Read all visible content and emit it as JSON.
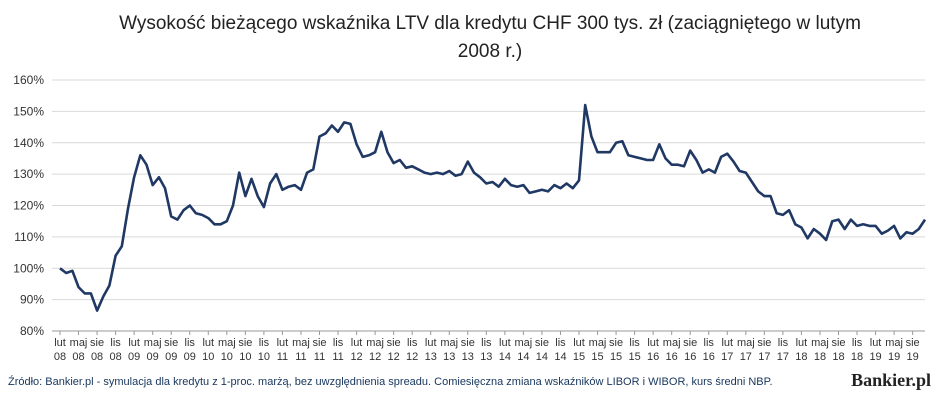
{
  "chart_data": {
    "type": "line",
    "title": "Wysokość bieżącego wskaźnika LTV dla kredytu CHF 300 tys. zł (zaciągniętego w lutym 2008 r.)",
    "title_line1": "Wysokość bieżącego wskaźnika LTV dla kredytu CHF 300 tys. zł (zaciągniętego w lutym",
    "title_line2": "2008 r.)",
    "xlabel": "",
    "ylabel": "",
    "ylim": [
      80,
      160
    ],
    "yticks": [
      80,
      90,
      100,
      110,
      120,
      130,
      140,
      150,
      160
    ],
    "y_tick_labels": [
      "80%",
      "90%",
      "100%",
      "110%",
      "120%",
      "130%",
      "140%",
      "150%",
      "160%"
    ],
    "grid": true,
    "x_tick_labels": [
      {
        "m": "lut",
        "y": "08"
      },
      {
        "m": "maj",
        "y": "08"
      },
      {
        "m": "sie",
        "y": "08"
      },
      {
        "m": "lis",
        "y": "08"
      },
      {
        "m": "lut",
        "y": "09"
      },
      {
        "m": "maj",
        "y": "09"
      },
      {
        "m": "sie",
        "y": "09"
      },
      {
        "m": "lis",
        "y": "09"
      },
      {
        "m": "lut",
        "y": "10"
      },
      {
        "m": "maj",
        "y": "10"
      },
      {
        "m": "sie",
        "y": "10"
      },
      {
        "m": "lis",
        "y": "10"
      },
      {
        "m": "lut",
        "y": "11"
      },
      {
        "m": "maj",
        "y": "11"
      },
      {
        "m": "sie",
        "y": "11"
      },
      {
        "m": "lis",
        "y": "11"
      },
      {
        "m": "lut",
        "y": "12"
      },
      {
        "m": "maj",
        "y": "12"
      },
      {
        "m": "sie",
        "y": "12"
      },
      {
        "m": "lis",
        "y": "12"
      },
      {
        "m": "lut",
        "y": "13"
      },
      {
        "m": "maj",
        "y": "13"
      },
      {
        "m": "sie",
        "y": "13"
      },
      {
        "m": "lis",
        "y": "13"
      },
      {
        "m": "lut",
        "y": "14"
      },
      {
        "m": "maj",
        "y": "14"
      },
      {
        "m": "sie",
        "y": "14"
      },
      {
        "m": "lis",
        "y": "14"
      },
      {
        "m": "lut",
        "y": "15"
      },
      {
        "m": "maj",
        "y": "15"
      },
      {
        "m": "sie",
        "y": "15"
      },
      {
        "m": "lis",
        "y": "15"
      },
      {
        "m": "lut",
        "y": "16"
      },
      {
        "m": "maj",
        "y": "16"
      },
      {
        "m": "sie",
        "y": "16"
      },
      {
        "m": "lis",
        "y": "16"
      },
      {
        "m": "lut",
        "y": "17"
      },
      {
        "m": "maj",
        "y": "17"
      },
      {
        "m": "sie",
        "y": "17"
      },
      {
        "m": "lis",
        "y": "17"
      },
      {
        "m": "lut",
        "y": "18"
      },
      {
        "m": "maj",
        "y": "18"
      },
      {
        "m": "sie",
        "y": "18"
      },
      {
        "m": "lis",
        "y": "18"
      },
      {
        "m": "lut",
        "y": "19"
      },
      {
        "m": "maj",
        "y": "19"
      },
      {
        "m": "sie",
        "y": "19"
      }
    ],
    "x_start": "2008-02",
    "x_end": "2019-09",
    "series": [
      {
        "values": [
          100,
          98.5,
          99.2,
          94,
          92,
          92,
          86.5,
          91,
          94.5,
          104,
          107,
          119,
          129,
          136,
          133,
          126.5,
          129,
          125.5,
          116.5,
          115.5,
          118.5,
          120,
          117.5,
          117,
          116,
          114,
          114,
          115,
          120,
          130.5,
          123,
          128.5,
          123,
          119.5,
          127,
          130,
          125,
          126,
          126.5,
          125,
          130.5,
          131.5,
          142,
          143,
          145.5,
          143.5,
          146.5,
          146,
          139.5,
          135.5,
          136,
          137,
          143.5,
          137,
          133.5,
          134.5,
          132,
          132.5,
          131.5,
          130.5,
          130,
          130.5,
          130,
          131,
          129.5,
          130,
          134,
          130.5,
          129,
          127,
          127.5,
          126,
          128.5,
          126.5,
          126,
          126.5,
          124,
          124.5,
          125,
          124.5,
          126.5,
          125.5,
          127,
          125.5,
          128,
          152,
          142,
          137,
          137,
          137,
          140,
          140.5,
          136,
          135.5,
          135,
          134.5,
          134.5,
          139.5,
          135,
          133,
          133,
          132.5,
          137.5,
          134.5,
          130.5,
          131.5,
          130.5,
          135.5,
          136.5,
          134,
          131,
          130.5,
          127.5,
          124.5,
          123,
          123,
          117.5,
          117,
          118.5,
          114,
          113,
          109.5,
          112.5,
          111,
          109,
          115,
          115.5,
          112.5,
          115.5,
          113.5,
          114,
          113.5,
          113.5,
          111,
          112,
          113.5,
          109.5,
          111.5,
          111,
          112.5,
          115.5
        ]
      }
    ],
    "line_color": "#1f3864"
  },
  "footer": {
    "source": "Źródło: Bankier.pl - symulacja dla kredytu z 1-proc. marżą, bez uwzględnienia spreadu. Comiesięczna zmiana wskaźników LIBOR i WIBOR, kurs średni NBP.",
    "brand": "Bankier.pl"
  }
}
